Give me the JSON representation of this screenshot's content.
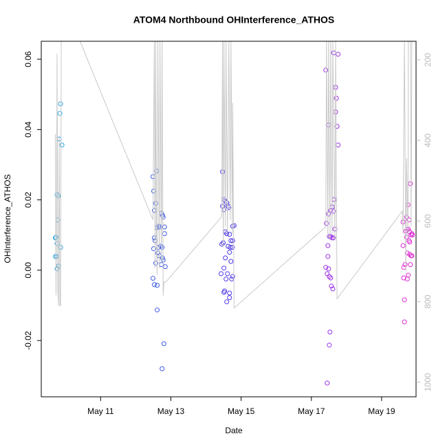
{
  "chart_data": {
    "type": "scatter",
    "title": "ATOM4 Northbound OHInterference_ATHOS",
    "x_label": "Date",
    "y_label": "OHInterference_ATHOS",
    "xlim": [
      9.31,
      19.98
    ],
    "xticks": [
      {
        "value": 11,
        "label": "May 11"
      },
      {
        "value": 13,
        "label": "May 13"
      },
      {
        "value": 15,
        "label": "May 15"
      },
      {
        "value": 17,
        "label": "May 17"
      },
      {
        "value": 19,
        "label": "May 19"
      }
    ],
    "ylim": [
      -0.036,
      0.0651
    ],
    "yticks": [
      -0.02,
      {
        "value": 0,
        "label": "0.00"
      },
      0.02,
      0.04,
      0.06
    ],
    "y2lim": [
      1036,
      154
    ],
    "y2ticks": [
      200,
      400,
      600,
      800,
      1000
    ],
    "y2_color": "#bbbbbb",
    "series": [
      {
        "color": "#29a3e0",
        "x": [
          9.71,
          9.75,
          9.78,
          9.76,
          9.8,
          9.82,
          9.84,
          9.86,
          9.9,
          9.86,
          9.76,
          9.8,
          9.76,
          9.71,
          9.73
        ],
        "values": [
          0.0039,
          0.0039,
          0.0143,
          0.0215,
          0.0211,
          0.0373,
          0.0446,
          0.0473,
          0.0356,
          0.0065,
          0.0076,
          0.0012,
          0.0004,
          0.0092,
          0.0094
        ]
      },
      {
        "color": "#3d5ce6",
        "x": [
          12.49,
          12.51,
          12.59,
          12.57,
          12.53,
          12.61,
          12.65,
          12.69,
          12.53,
          12.55,
          12.51,
          12.65,
          12.71,
          12.75,
          12.63,
          12.67,
          12.76,
          12.57,
          12.73,
          12.78,
          12.84,
          12.49,
          12.53,
          12.61,
          12.73,
          12.76,
          12.78,
          12.82,
          12.82,
          12.61,
          12.8,
          12.75
        ],
        "values": [
          0.0266,
          0.0225,
          0.0282,
          0.019,
          0.017,
          0.0121,
          0.0125,
          0.0123,
          0.0092,
          0.0084,
          0.0061,
          0.0065,
          0.0068,
          0.0065,
          0.0049,
          0.0041,
          0.0035,
          0.002,
          0.0016,
          0.0029,
          0.001,
          -0.0023,
          -0.0041,
          -0.0043,
          0.0162,
          0.0156,
          0.0151,
          0.0123,
          0.0104,
          -0.0113,
          -0.0209,
          -0.028
        ]
      },
      {
        "color": "#4a36e8",
        "x": [
          14.47,
          14.51,
          14.55,
          14.59,
          14.47,
          14.63,
          14.51,
          14.65,
          14.76,
          14.8,
          14.55,
          14.59,
          14.67,
          14.49,
          14.45,
          14.71,
          14.76,
          14.63,
          14.69,
          14.75,
          14.67,
          14.55,
          14.71,
          14.51,
          14.43,
          14.61,
          14.76,
          14.57,
          14.73,
          14.53,
          14.67,
          14.67,
          14.59,
          14.51
        ],
        "values": [
          0.028,
          0.0201,
          0.0196,
          0.0192,
          0.0182,
          0.0182,
          0.0172,
          0.0178,
          0.0125,
          0.0127,
          0.0109,
          0.0104,
          0.0102,
          0.0078,
          0.0074,
          0.0084,
          0.0084,
          0.0068,
          0.0065,
          0.0065,
          0.0051,
          0.0035,
          0.0025,
          0.0006,
          -0.001,
          -0.001,
          -0.0018,
          -0.0025,
          -0.0025,
          -0.0059,
          -0.0065,
          -0.0078,
          -0.009,
          -0.0063
        ]
      },
      {
        "color": "#9a2fe6",
        "x": [
          17.41,
          17.63,
          17.76,
          17.69,
          17.71,
          17.69,
          17.73,
          17.49,
          17.76,
          17.65,
          17.59,
          17.55,
          17.49,
          17.63,
          17.43,
          17.67,
          17.51,
          17.55,
          17.59,
          17.63,
          17.47,
          17.47,
          17.41,
          17.49,
          17.45,
          17.51,
          17.55,
          17.57,
          17.61,
          17.53,
          17.51,
          17.45
        ],
        "values": [
          0.0569,
          0.0618,
          0.0614,
          0.052,
          0.0489,
          0.045,
          0.0409,
          0.0413,
          0.0356,
          0.0201,
          0.018,
          0.017,
          0.016,
          0.0168,
          0.0133,
          0.0117,
          0.0096,
          0.0096,
          0.0092,
          0.0092,
          0.007,
          0.0039,
          0.0008,
          0.0004,
          -0.001,
          -0.0018,
          -0.0022,
          -0.0045,
          -0.0053,
          -0.0176,
          -0.0213,
          -0.0321
        ]
      },
      {
        "color": "#e02ad4",
        "x": [
          19.82,
          19.75,
          19.71,
          19.78,
          19.61,
          19.73,
          19.76,
          19.8,
          19.69,
          19.86,
          19.88,
          19.84,
          19.71,
          19.78,
          19.61,
          19.8,
          19.73,
          19.8,
          19.86,
          19.84,
          19.67,
          19.63,
          19.82,
          19.76,
          19.63,
          19.73,
          19.65,
          19.65
        ],
        "values": [
          0.0246,
          0.0186,
          0.0151,
          0.0143,
          0.0137,
          0.0115,
          0.0117,
          0.0109,
          0.0111,
          0.0104,
          0.01,
          0.01,
          0.0094,
          0.0084,
          0.007,
          0.008,
          0.0049,
          0.0045,
          0.0041,
          0.0041,
          0.0016,
          0.0008,
          0.0016,
          -0.0014,
          -0.0022,
          -0.0025,
          -0.0084,
          -0.0147
        ]
      },
      {
        "color": "#c8c8c8",
        "axis": "y2",
        "line": true,
        "x": [
          9.71,
          9.73,
          9.75,
          9.76,
          9.78,
          9.8,
          9.82,
          9.84,
          9.86,
          9.88,
          9.9,
          10.39,
          12.49,
          12.51,
          12.53,
          12.55,
          12.57,
          12.59,
          12.61,
          12.63,
          12.67,
          12.69,
          12.73,
          12.75,
          12.78,
          12.8,
          12.86,
          14.45,
          14.47,
          14.49,
          14.51,
          14.55,
          14.57,
          14.61,
          14.65,
          14.69,
          14.71,
          14.75,
          14.76,
          14.8,
          17.41,
          17.43,
          17.47,
          17.49,
          17.53,
          17.55,
          17.59,
          17.61,
          17.67,
          17.69,
          17.73,
          19.59,
          19.61,
          19.65,
          19.69,
          19.71,
          19.75,
          19.76,
          19.82,
          19.84,
          19.86
        ],
        "values": [
          384,
          784,
          461,
          185,
          768,
          810,
          393,
          810,
          810,
          150,
          145,
          149,
          597,
          359,
          154,
          717,
          154,
          650,
          734,
          154,
          717,
          154,
          700,
          154,
          785,
          751,
          751,
          589,
          154,
          665,
          154,
          614,
          154,
          631,
          154,
          597,
          154,
          631,
          307,
          816,
          614,
          154,
          640,
          154,
          648,
          154,
          631,
          154,
          648,
          154,
          793,
          575,
          631,
          154,
          725,
          444,
          640,
          154,
          154,
          614,
          154
        ]
      }
    ]
  }
}
